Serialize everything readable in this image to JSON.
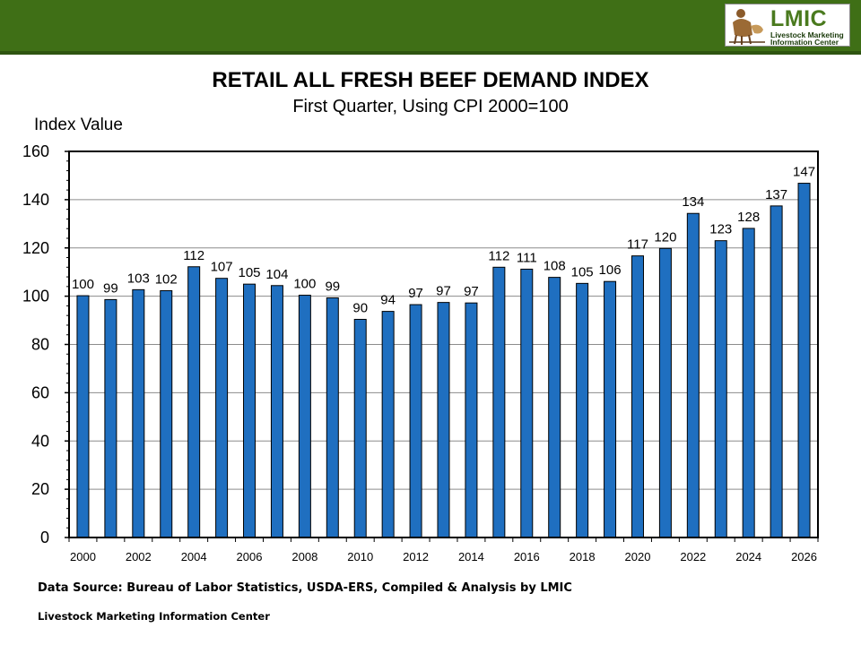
{
  "header": {
    "logo_text": "LMIC",
    "logo_sub_1": "Livestock Marketing",
    "logo_sub_2": "Information Center"
  },
  "chart_data": {
    "type": "bar",
    "title": "RETAIL ALL FRESH BEEF DEMAND INDEX",
    "subtitle": "First Quarter, Using CPI 2000=100",
    "ylabel": "Index Value",
    "xlabel": "",
    "ylim": [
      0,
      160
    ],
    "yticks": [
      0,
      20,
      40,
      60,
      80,
      100,
      120,
      140,
      160
    ],
    "grid": true,
    "bar_color": "#1f6fc0",
    "categories": [
      2000,
      2001,
      2002,
      2003,
      2004,
      2005,
      2006,
      2007,
      2008,
      2009,
      2010,
      2011,
      2012,
      2013,
      2014,
      2015,
      2016,
      2017,
      2018,
      2019,
      2020,
      2021,
      2022,
      2023,
      2024,
      2025,
      2026
    ],
    "values": [
      100.2,
      98.6,
      102.7,
      102.3,
      112.2,
      107.4,
      105.0,
      104.4,
      100.4,
      99.3,
      90.4,
      93.7,
      96.5,
      97.4,
      97.2,
      112.0,
      111.2,
      107.8,
      105.3,
      106.1,
      116.7,
      119.8,
      134.3,
      123.0,
      128.1,
      137.4,
      146.8
    ],
    "data_labels": [
      "100",
      "99",
      "103",
      "102",
      "112",
      "107",
      "105",
      "104",
      "100",
      "99",
      "90",
      "94",
      "97",
      "97",
      "97",
      "112",
      "111",
      "108",
      "105",
      "106",
      "117",
      "120",
      "134",
      "123",
      "128",
      "137",
      "147"
    ],
    "xtick_labels": [
      "2000",
      "2002",
      "2004",
      "2006",
      "2008",
      "2010",
      "2012",
      "2014",
      "2016",
      "2018",
      "2020",
      "2022",
      "2024",
      "2026"
    ]
  },
  "footer": {
    "source": "Data Source:  Bureau of Labor Statistics, USDA-ERS, Compiled & Analysis by LMIC",
    "org": "Livestock Marketing Information Center"
  }
}
